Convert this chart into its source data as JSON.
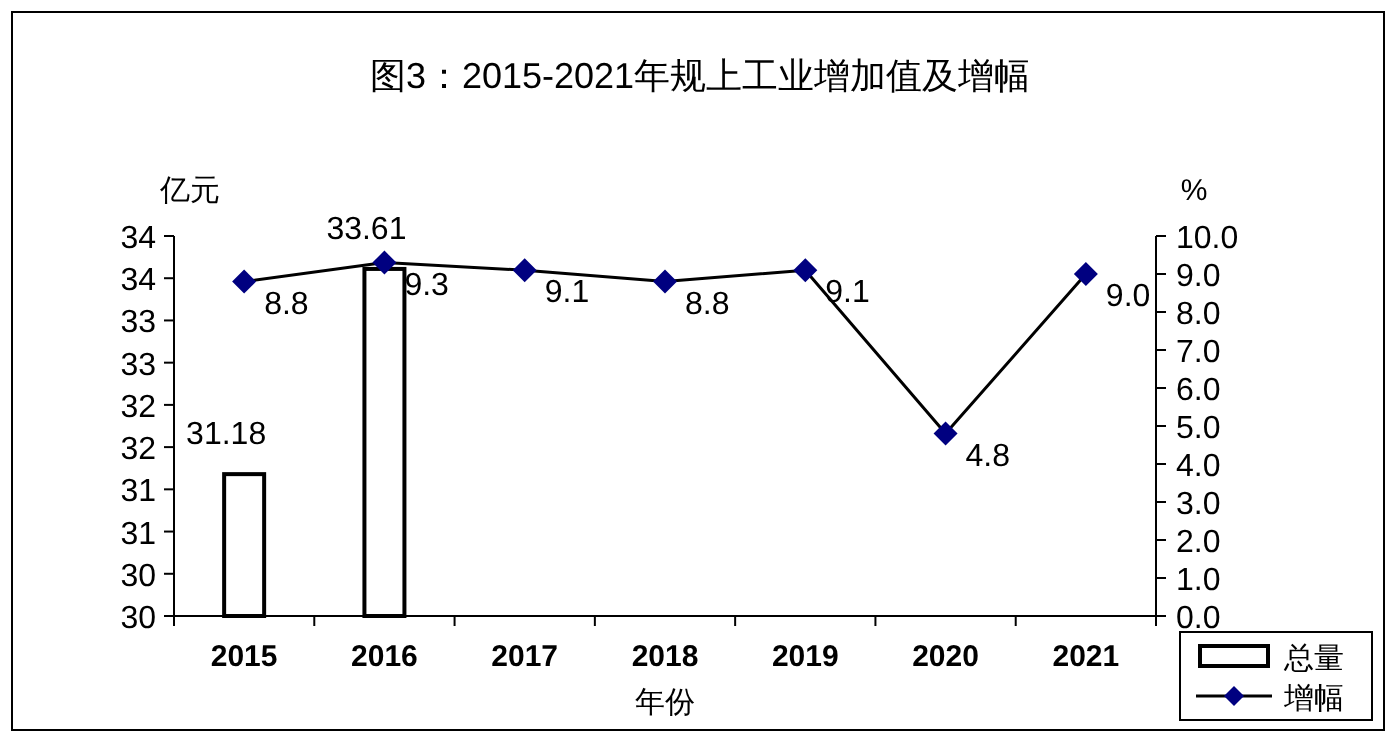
{
  "chart_data": {
    "type": "bar",
    "title": "图3：2015-2021年规上工业增加值及增幅",
    "xlabel": "年份",
    "ylabel": "亿元",
    "y2label": "%",
    "categories": [
      "2015",
      "2016",
      "2017",
      "2018",
      "2019",
      "2020",
      "2021"
    ],
    "series": [
      {
        "name": "总量",
        "color": "#ffffff",
        "values": [
          31.18,
          33.61,
          null,
          null,
          null,
          null,
          null
        ],
        "value_labels": [
          "31.18",
          "33.61",
          null,
          null,
          null,
          null,
          null
        ]
      },
      {
        "name": "增幅",
        "type": "line",
        "axis": "y2",
        "color": "#000080",
        "marker": "diamond",
        "values": [
          8.8,
          9.3,
          9.1,
          8.8,
          9.1,
          4.8,
          9.0
        ],
        "value_labels": [
          "8.8",
          "9.3",
          "9.1",
          "8.8",
          "9.1",
          "4.8",
          "9.0"
        ]
      }
    ],
    "ylim": [
      29.5,
      34
    ],
    "yticks": [
      {
        "value": 29.5,
        "label": "30"
      },
      {
        "value": 30,
        "label": "30"
      },
      {
        "value": 30.5,
        "label": "31"
      },
      {
        "value": 31,
        "label": "31"
      },
      {
        "value": 31.5,
        "label": "32"
      },
      {
        "value": 32,
        "label": "32"
      },
      {
        "value": 32.5,
        "label": "33"
      },
      {
        "value": 33,
        "label": "33"
      },
      {
        "value": 33.5,
        "label": "34"
      },
      {
        "value": 34,
        "label": "34"
      }
    ],
    "y2lim": [
      0,
      10
    ],
    "y2ticks": [
      {
        "value": 0,
        "label": "0.0"
      },
      {
        "value": 1,
        "label": "1.0"
      },
      {
        "value": 2,
        "label": "2.0"
      },
      {
        "value": 3,
        "label": "3.0"
      },
      {
        "value": 4,
        "label": "4.0"
      },
      {
        "value": 5,
        "label": "5.0"
      },
      {
        "value": 6,
        "label": "6.0"
      },
      {
        "value": 7,
        "label": "7.0"
      },
      {
        "value": 8,
        "label": "8.0"
      },
      {
        "value": 9,
        "label": "9.0"
      },
      {
        "value": 10,
        "label": "10.0"
      }
    ],
    "grid": false,
    "legend": "bottom right"
  }
}
